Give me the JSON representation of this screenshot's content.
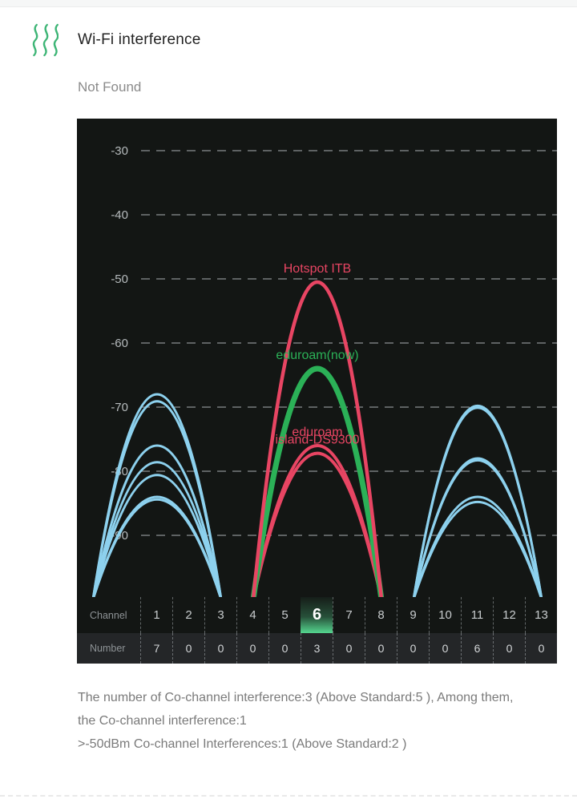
{
  "header": {
    "title": "Wi-Fi interference",
    "status": "Not Found",
    "icon_color": "#3eb576"
  },
  "chart_data": {
    "type": "line",
    "description": "Wi-Fi channel interference curves (signal strength in dBm per channel)",
    "y_axis": {
      "unit": "dBm",
      "ticks": [
        -30,
        -40,
        -50,
        -60,
        -70,
        -80,
        -90
      ],
      "floor_dbm": -100
    },
    "x_axis": {
      "label": "Channel",
      "channels": [
        1,
        2,
        3,
        4,
        5,
        6,
        7,
        8,
        9,
        10,
        11,
        12,
        13
      ],
      "selected_channel": 6
    },
    "number_row": {
      "label": "Number",
      "values": [
        7,
        0,
        0,
        0,
        0,
        3,
        0,
        0,
        0,
        0,
        6,
        0,
        0
      ]
    },
    "curve_span_channels": 2,
    "grid": "dashed",
    "legend_position": "inline-labels",
    "palette": {
      "red": "#e84563",
      "green": "#2bb157",
      "blue": "#8dd1ee",
      "grid": "#93989b",
      "tick_label": "#b6bbbd"
    },
    "networks": [
      {
        "name": "",
        "channel": 1,
        "peak_dbm": -68.0,
        "color": "blue",
        "stroke_width": 3
      },
      {
        "name": "",
        "channel": 1,
        "peak_dbm": -69.1,
        "color": "blue",
        "stroke_width": 3
      },
      {
        "name": "",
        "channel": 1,
        "peak_dbm": -76.0,
        "color": "blue",
        "stroke_width": 3
      },
      {
        "name": "",
        "channel": 1,
        "peak_dbm": -78.6,
        "color": "blue",
        "stroke_width": 3
      },
      {
        "name": "",
        "channel": 1,
        "peak_dbm": -80.6,
        "color": "blue",
        "stroke_width": 3
      },
      {
        "name": "",
        "channel": 1,
        "peak_dbm": -84.0,
        "color": "blue",
        "stroke_width": 3
      },
      {
        "name": "",
        "channel": 1,
        "peak_dbm": -84.4,
        "color": "blue",
        "stroke_width": 3
      },
      {
        "name": "",
        "channel": 11,
        "peak_dbm": -69.8,
        "color": "blue",
        "stroke_width": 3
      },
      {
        "name": "",
        "channel": 11,
        "peak_dbm": -70.1,
        "color": "blue",
        "stroke_width": 3
      },
      {
        "name": "",
        "channel": 11,
        "peak_dbm": -78.0,
        "color": "blue",
        "stroke_width": 3
      },
      {
        "name": "",
        "channel": 11,
        "peak_dbm": -78.3,
        "color": "blue",
        "stroke_width": 3
      },
      {
        "name": "",
        "channel": 11,
        "peak_dbm": -84.0,
        "color": "blue",
        "stroke_width": 3
      },
      {
        "name": "",
        "channel": 11,
        "peak_dbm": -84.8,
        "color": "blue",
        "stroke_width": 3
      },
      {
        "name": "eduroam",
        "channel": 6,
        "peak_dbm": -76.0,
        "color": "red",
        "stroke_width": 4
      },
      {
        "name": "island-DS9300",
        "channel": 6,
        "peak_dbm": -77.2,
        "color": "red",
        "stroke_width": 4
      },
      {
        "name": "eduroam(now)",
        "channel": 6,
        "peak_dbm": -64.0,
        "color": "green",
        "stroke_width": 7
      },
      {
        "name": "Hotspot ITB",
        "channel": 6,
        "peak_dbm": -50.5,
        "color": "red",
        "stroke_width": 4.5
      }
    ]
  },
  "footer": {
    "paragraph1": "The number of Co-channel interference:3 (Above Standard:5 ), Among them, the Co-channel interference:1",
    "paragraph2": ">-50dBm Co-channel Interferences:1 (Above Standard:2 )"
  }
}
